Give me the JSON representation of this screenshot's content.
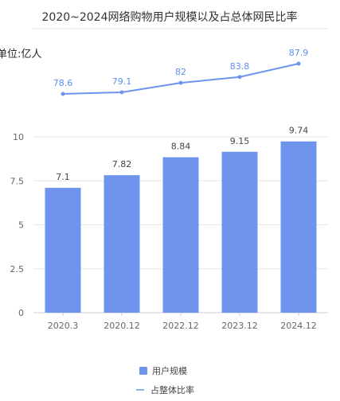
{
  "chart_data": {
    "type": "bar",
    "title": "2020~2024网络购物用户规模以及占总体网民比率",
    "unit_label": "单位:亿人",
    "categories": [
      "2020.3",
      "2020.12",
      "2022.12",
      "2023.12",
      "2024.12"
    ],
    "ylim": [
      0,
      10
    ],
    "yticks": [
      "0",
      "2.5",
      "5",
      "7.5",
      "10"
    ],
    "grid": true,
    "legend_position": "bottom",
    "series": [
      {
        "name": "用户规模",
        "type": "bar",
        "color": "#6e94ee",
        "values": [
          7.1,
          7.82,
          8.84,
          9.15,
          9.74
        ],
        "labels": [
          "7.1",
          "7.82",
          "8.84",
          "9.15",
          "9.74"
        ]
      },
      {
        "name": "占整体比率",
        "type": "line",
        "color": "#6e94ee",
        "values": [
          78.6,
          79.1,
          82,
          83.8,
          87.9
        ],
        "labels": [
          "78.6",
          "79.1",
          "82",
          "83.8",
          "87.9"
        ]
      }
    ]
  }
}
